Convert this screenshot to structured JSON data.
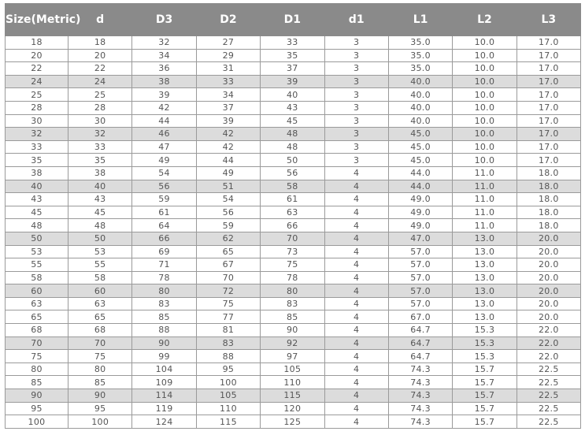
{
  "table": {
    "headers": [
      "Size(Metric)",
      "d",
      "D3",
      "D2",
      "D1",
      "d1",
      "L1",
      "L2",
      "L3"
    ],
    "shaded_rows": [
      3,
      7,
      11,
      15,
      19,
      23,
      27
    ],
    "shade_color": "#dcdcdc",
    "header_color": "#8a8a8a",
    "rows": [
      [
        "18",
        "18",
        "32",
        "27",
        "33",
        "3",
        "35.0",
        "10.0",
        "17.0"
      ],
      [
        "20",
        "20",
        "34",
        "29",
        "35",
        "3",
        "35.0",
        "10.0",
        "17.0"
      ],
      [
        "22",
        "22",
        "36",
        "31",
        "37",
        "3",
        "35.0",
        "10.0",
        "17.0"
      ],
      [
        "24",
        "24",
        "38",
        "33",
        "39",
        "3",
        "40.0",
        "10.0",
        "17.0"
      ],
      [
        "25",
        "25",
        "39",
        "34",
        "40",
        "3",
        "40.0",
        "10.0",
        "17.0"
      ],
      [
        "28",
        "28",
        "42",
        "37",
        "43",
        "3",
        "40.0",
        "10.0",
        "17.0"
      ],
      [
        "30",
        "30",
        "44",
        "39",
        "45",
        "3",
        "40.0",
        "10.0",
        "17.0"
      ],
      [
        "32",
        "32",
        "46",
        "42",
        "48",
        "3",
        "45.0",
        "10.0",
        "17.0"
      ],
      [
        "33",
        "33",
        "47",
        "42",
        "48",
        "3",
        "45.0",
        "10.0",
        "17.0"
      ],
      [
        "35",
        "35",
        "49",
        "44",
        "50",
        "3",
        "45.0",
        "10.0",
        "17.0"
      ],
      [
        "38",
        "38",
        "54",
        "49",
        "56",
        "4",
        "44.0",
        "11.0",
        "18.0"
      ],
      [
        "40",
        "40",
        "56",
        "51",
        "58",
        "4",
        "44.0",
        "11.0",
        "18.0"
      ],
      [
        "43",
        "43",
        "59",
        "54",
        "61",
        "4",
        "49.0",
        "11.0",
        "18.0"
      ],
      [
        "45",
        "45",
        "61",
        "56",
        "63",
        "4",
        "49.0",
        "11.0",
        "18.0"
      ],
      [
        "48",
        "48",
        "64",
        "59",
        "66",
        "4",
        "49.0",
        "11.0",
        "18.0"
      ],
      [
        "50",
        "50",
        "66",
        "62",
        "70",
        "4",
        "47.0",
        "13.0",
        "20.0"
      ],
      [
        "53",
        "53",
        "69",
        "65",
        "73",
        "4",
        "57.0",
        "13.0",
        "20.0"
      ],
      [
        "55",
        "55",
        "71",
        "67",
        "75",
        "4",
        "57.0",
        "13.0",
        "20.0"
      ],
      [
        "58",
        "58",
        "78",
        "70",
        "78",
        "4",
        "57.0",
        "13.0",
        "20.0"
      ],
      [
        "60",
        "60",
        "80",
        "72",
        "80",
        "4",
        "57.0",
        "13.0",
        "20.0"
      ],
      [
        "63",
        "63",
        "83",
        "75",
        "83",
        "4",
        "57.0",
        "13.0",
        "20.0"
      ],
      [
        "65",
        "65",
        "85",
        "77",
        "85",
        "4",
        "67.0",
        "13.0",
        "20.0"
      ],
      [
        "68",
        "68",
        "88",
        "81",
        "90",
        "4",
        "64.7",
        "15.3",
        "22.0"
      ],
      [
        "70",
        "70",
        "90",
        "83",
        "92",
        "4",
        "64.7",
        "15.3",
        "22.0"
      ],
      [
        "75",
        "75",
        "99",
        "88",
        "97",
        "4",
        "64.7",
        "15.3",
        "22.0"
      ],
      [
        "80",
        "80",
        "104",
        "95",
        "105",
        "4",
        "74.3",
        "15.7",
        "22.5"
      ],
      [
        "85",
        "85",
        "109",
        "100",
        "110",
        "4",
        "74.3",
        "15.7",
        "22.5"
      ],
      [
        "90",
        "90",
        "114",
        "105",
        "115",
        "4",
        "74.3",
        "15.7",
        "22.5"
      ],
      [
        "95",
        "95",
        "119",
        "110",
        "120",
        "4",
        "74.3",
        "15.7",
        "22.5"
      ],
      [
        "100",
        "100",
        "124",
        "115",
        "125",
        "4",
        "74.3",
        "15.7",
        "22.5"
      ]
    ]
  }
}
